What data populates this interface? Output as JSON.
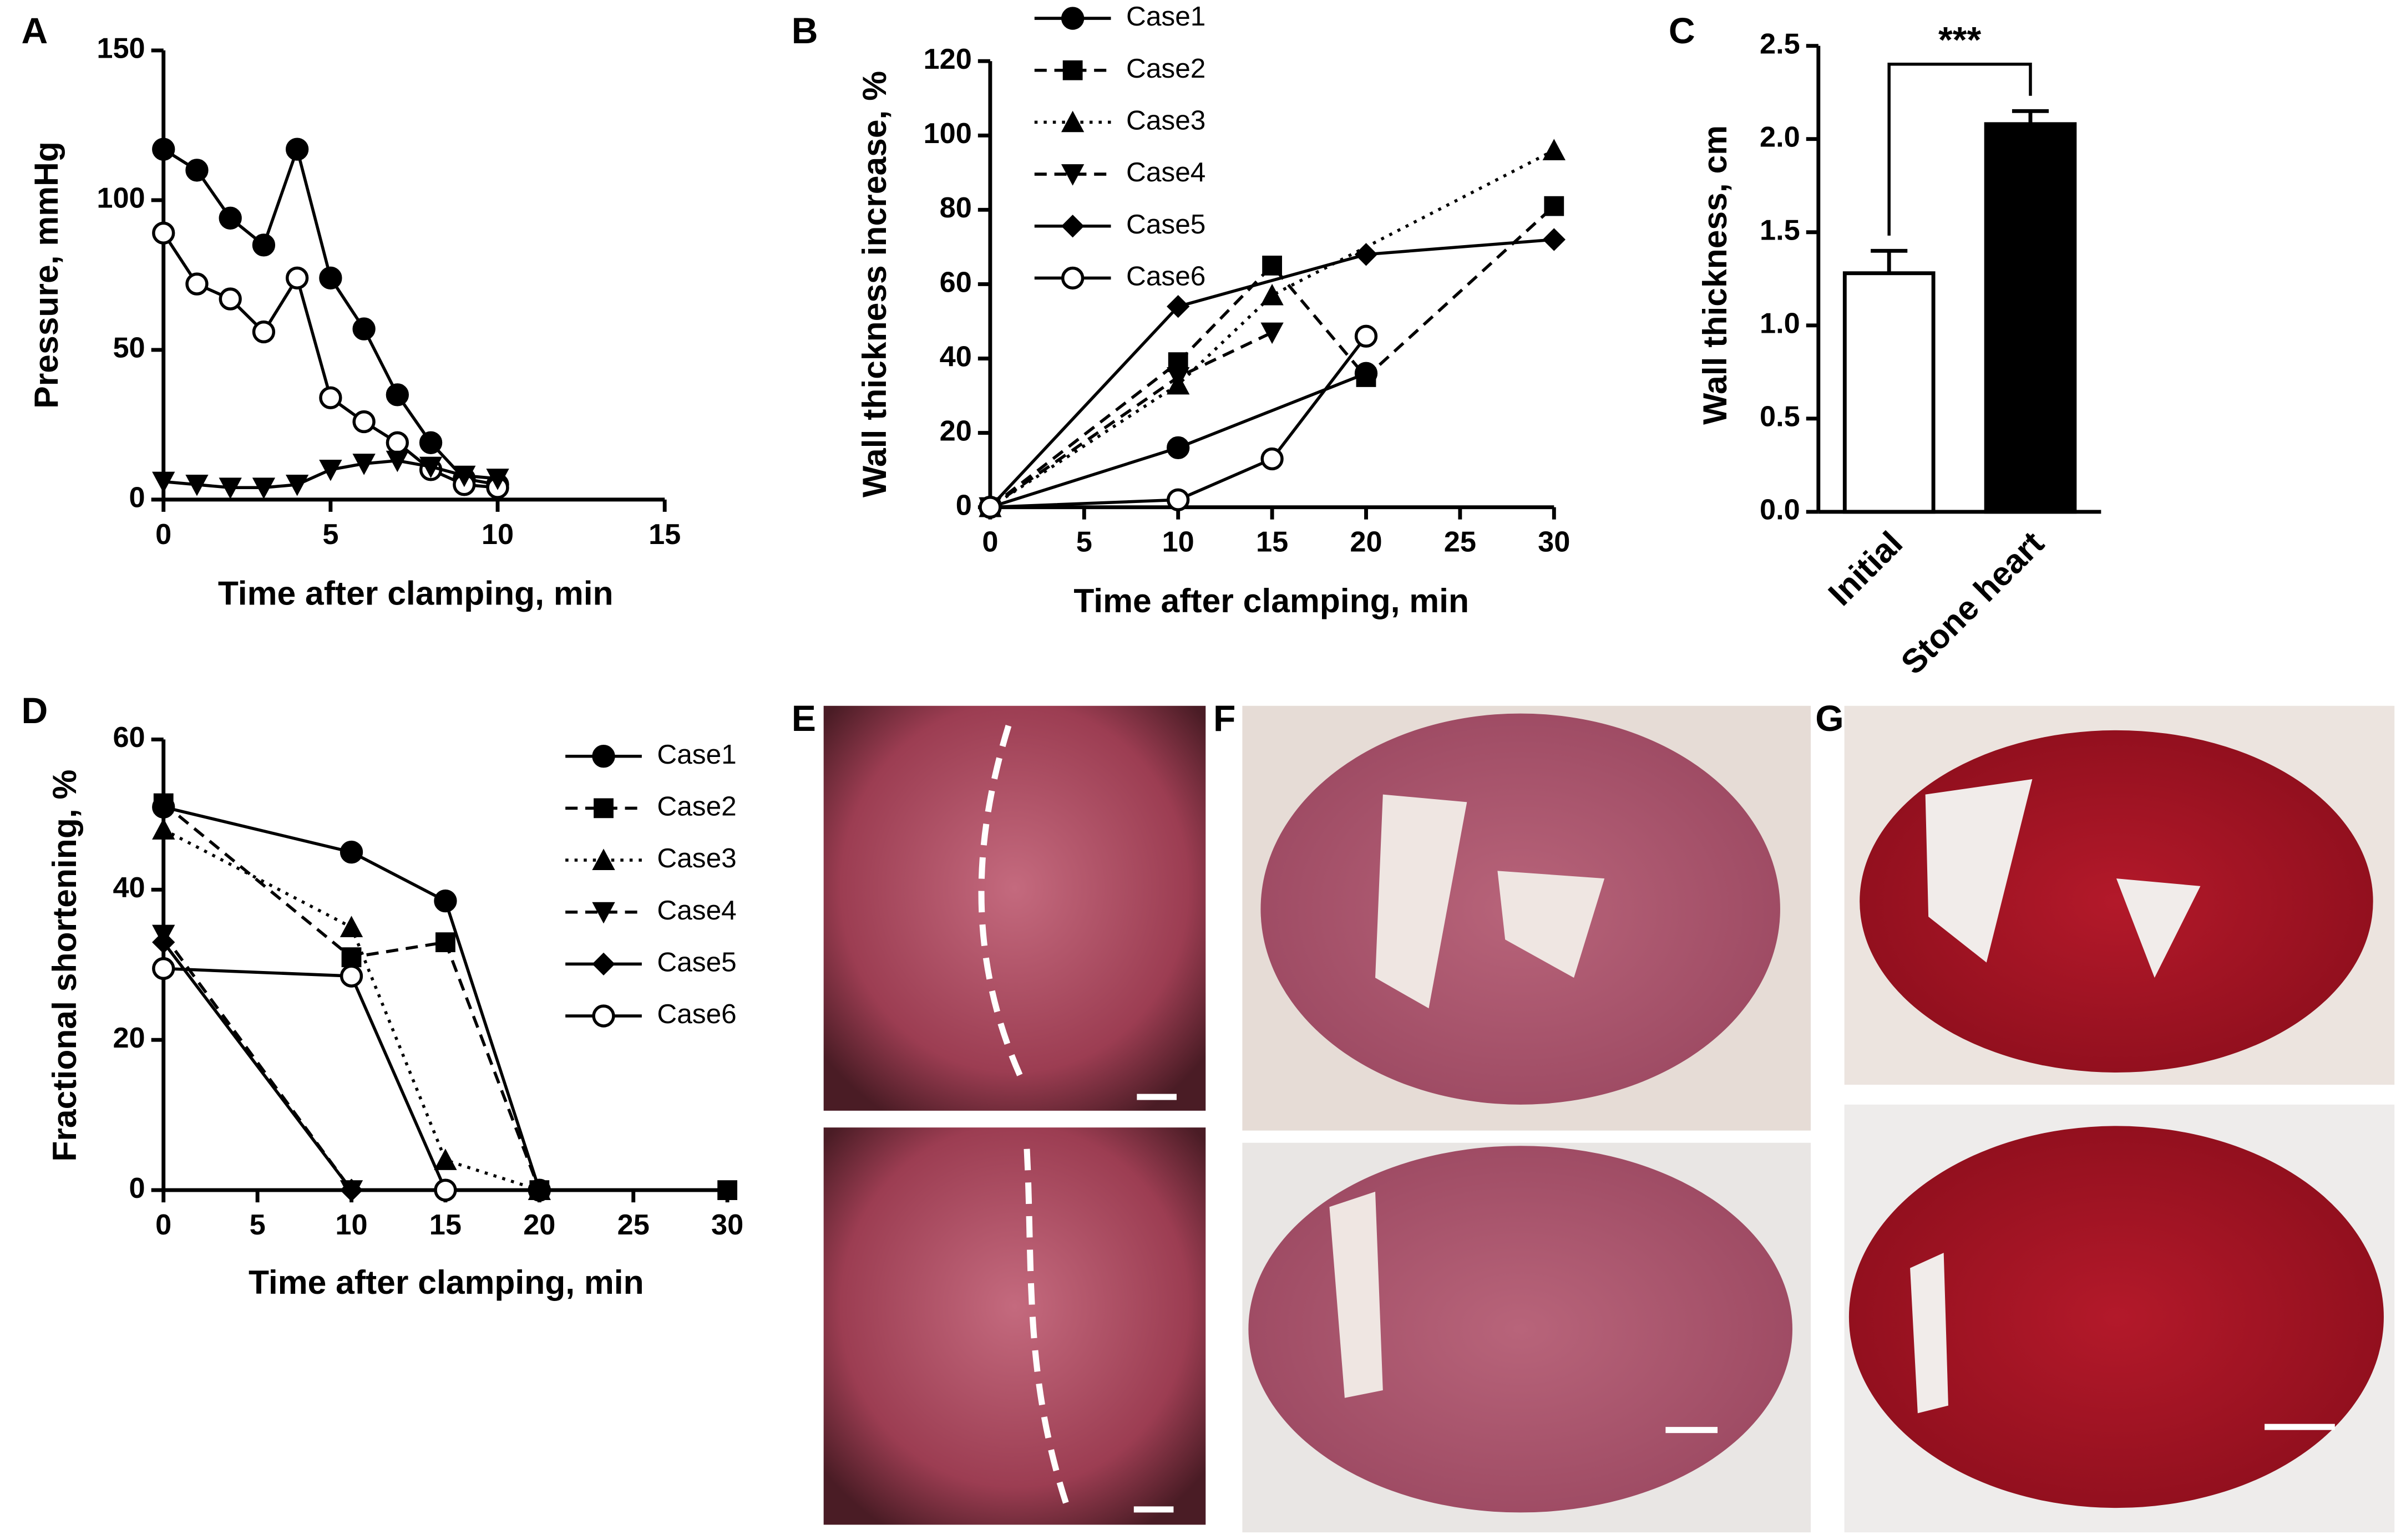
{
  "chart_data": [
    {
      "type": "line",
      "panel": "A",
      "xlabel": "Time after clamping, min",
      "ylabel": "Pressure, mmHg",
      "x": [
        0,
        1,
        2,
        3,
        4,
        5,
        6,
        7,
        8,
        9,
        10
      ],
      "xlim": [
        0,
        15
      ],
      "xticks": [
        0,
        5,
        10,
        15
      ],
      "ylim": [
        0,
        150
      ],
      "yticks": [
        0,
        50,
        100,
        150
      ],
      "series": [
        {
          "marker": "circle",
          "dash": "solid",
          "color": "#000",
          "values": [
            117,
            110,
            94,
            85,
            117,
            74,
            57,
            35,
            19,
            7,
            5
          ]
        },
        {
          "marker": "open-circle",
          "dash": "solid",
          "color": "#000",
          "values": [
            89,
            72,
            67,
            56,
            74,
            34,
            26,
            19,
            10,
            5,
            4
          ]
        },
        {
          "marker": "triangle-down",
          "dash": "solid",
          "color": "#000",
          "values": [
            6,
            5,
            4,
            4,
            5,
            10,
            12,
            13,
            11,
            8,
            7
          ]
        }
      ]
    },
    {
      "type": "line",
      "panel": "B",
      "xlabel": "Time after clamping, min",
      "ylabel": "Wall thickness increase, %",
      "xlim": [
        0,
        30
      ],
      "xticks": [
        0,
        5,
        10,
        15,
        20,
        25,
        30
      ],
      "ylim": [
        0,
        120
      ],
      "yticks": [
        0,
        20,
        40,
        60,
        80,
        100,
        120
      ],
      "series": [
        {
          "name": "Case1",
          "marker": "circle",
          "dash": "solid",
          "color": "#000",
          "x": [
            0,
            10,
            20
          ],
          "values": [
            0,
            16,
            36
          ]
        },
        {
          "name": "Case2",
          "marker": "square",
          "dash": "dashed",
          "color": "#000",
          "x": [
            0,
            10,
            15,
            20,
            30
          ],
          "values": [
            0,
            39,
            65,
            35,
            81
          ]
        },
        {
          "name": "Case3",
          "marker": "triangle",
          "dash": "dotted",
          "color": "#000",
          "x": [
            0,
            10,
            15,
            30
          ],
          "values": [
            0,
            33,
            57,
            96
          ]
        },
        {
          "name": "Case4",
          "marker": "triangle-down",
          "dash": "dashed",
          "color": "#000",
          "x": [
            0,
            10,
            15
          ],
          "values": [
            0,
            35,
            47
          ]
        },
        {
          "name": "Case5",
          "marker": "diamond",
          "dash": "solid",
          "color": "#000",
          "x": [
            0,
            10,
            20,
            30
          ],
          "values": [
            0,
            54,
            68,
            72
          ]
        },
        {
          "name": "Case6",
          "marker": "open-circle",
          "dash": "solid",
          "color": "#000",
          "x": [
            0,
            10,
            15,
            20
          ],
          "values": [
            0,
            2,
            13,
            46
          ]
        }
      ]
    },
    {
      "type": "bar",
      "panel": "C",
      "ylabel": "Wall thickness, cm",
      "annotation": "***",
      "categories": [
        "Initial",
        "Stone heart"
      ],
      "values": [
        1.28,
        2.08
      ],
      "errors": [
        0.12,
        0.07
      ],
      "colors": [
        "#ffffff",
        "#000000"
      ],
      "ylim": [
        0,
        2.5
      ],
      "yticks": [
        {
          "value": 0,
          "label": "0.0"
        },
        0.5,
        {
          "value": 1,
          "label": "1.0"
        },
        1.5,
        {
          "value": 2,
          "label": "2.0"
        },
        2.5
      ]
    },
    {
      "type": "line",
      "panel": "D",
      "xlabel": "Time after clamping, min",
      "ylabel": "Fractional shortening, %",
      "xlim": [
        0,
        30
      ],
      "xticks": [
        0,
        5,
        10,
        15,
        20,
        25,
        30
      ],
      "ylim": [
        0,
        60
      ],
      "yticks": [
        0,
        20,
        40,
        60
      ],
      "series": [
        {
          "name": "Case1",
          "marker": "circle",
          "dash": "solid",
          "color": "#000",
          "x": [
            0,
            10,
            15,
            20
          ],
          "values": [
            51,
            45,
            38.5,
            0
          ]
        },
        {
          "name": "Case2",
          "marker": "square",
          "dash": "dashed",
          "color": "#000",
          "x": [
            0,
            10,
            15,
            20,
            30
          ],
          "values": [
            51.5,
            31,
            33,
            0,
            0
          ]
        },
        {
          "name": "Case3",
          "marker": "triangle",
          "dash": "dotted",
          "color": "#000",
          "x": [
            0,
            10,
            15,
            20
          ],
          "values": [
            48,
            35,
            4,
            0
          ]
        },
        {
          "name": "Case4",
          "marker": "triangle-down",
          "dash": "dashed",
          "color": "#000",
          "x": [
            0,
            10
          ],
          "values": [
            34,
            0
          ]
        },
        {
          "name": "Case5",
          "marker": "diamond",
          "dash": "solid",
          "color": "#000",
          "x": [
            0,
            10
          ],
          "values": [
            33,
            0
          ]
        },
        {
          "name": "Case6",
          "marker": "open-circle",
          "dash": "solid",
          "color": "#000",
          "x": [
            0,
            10,
            15
          ],
          "values": [
            29.5,
            28.5,
            0
          ]
        }
      ]
    }
  ],
  "photo_panels": [
    "E",
    "F",
    "G"
  ]
}
